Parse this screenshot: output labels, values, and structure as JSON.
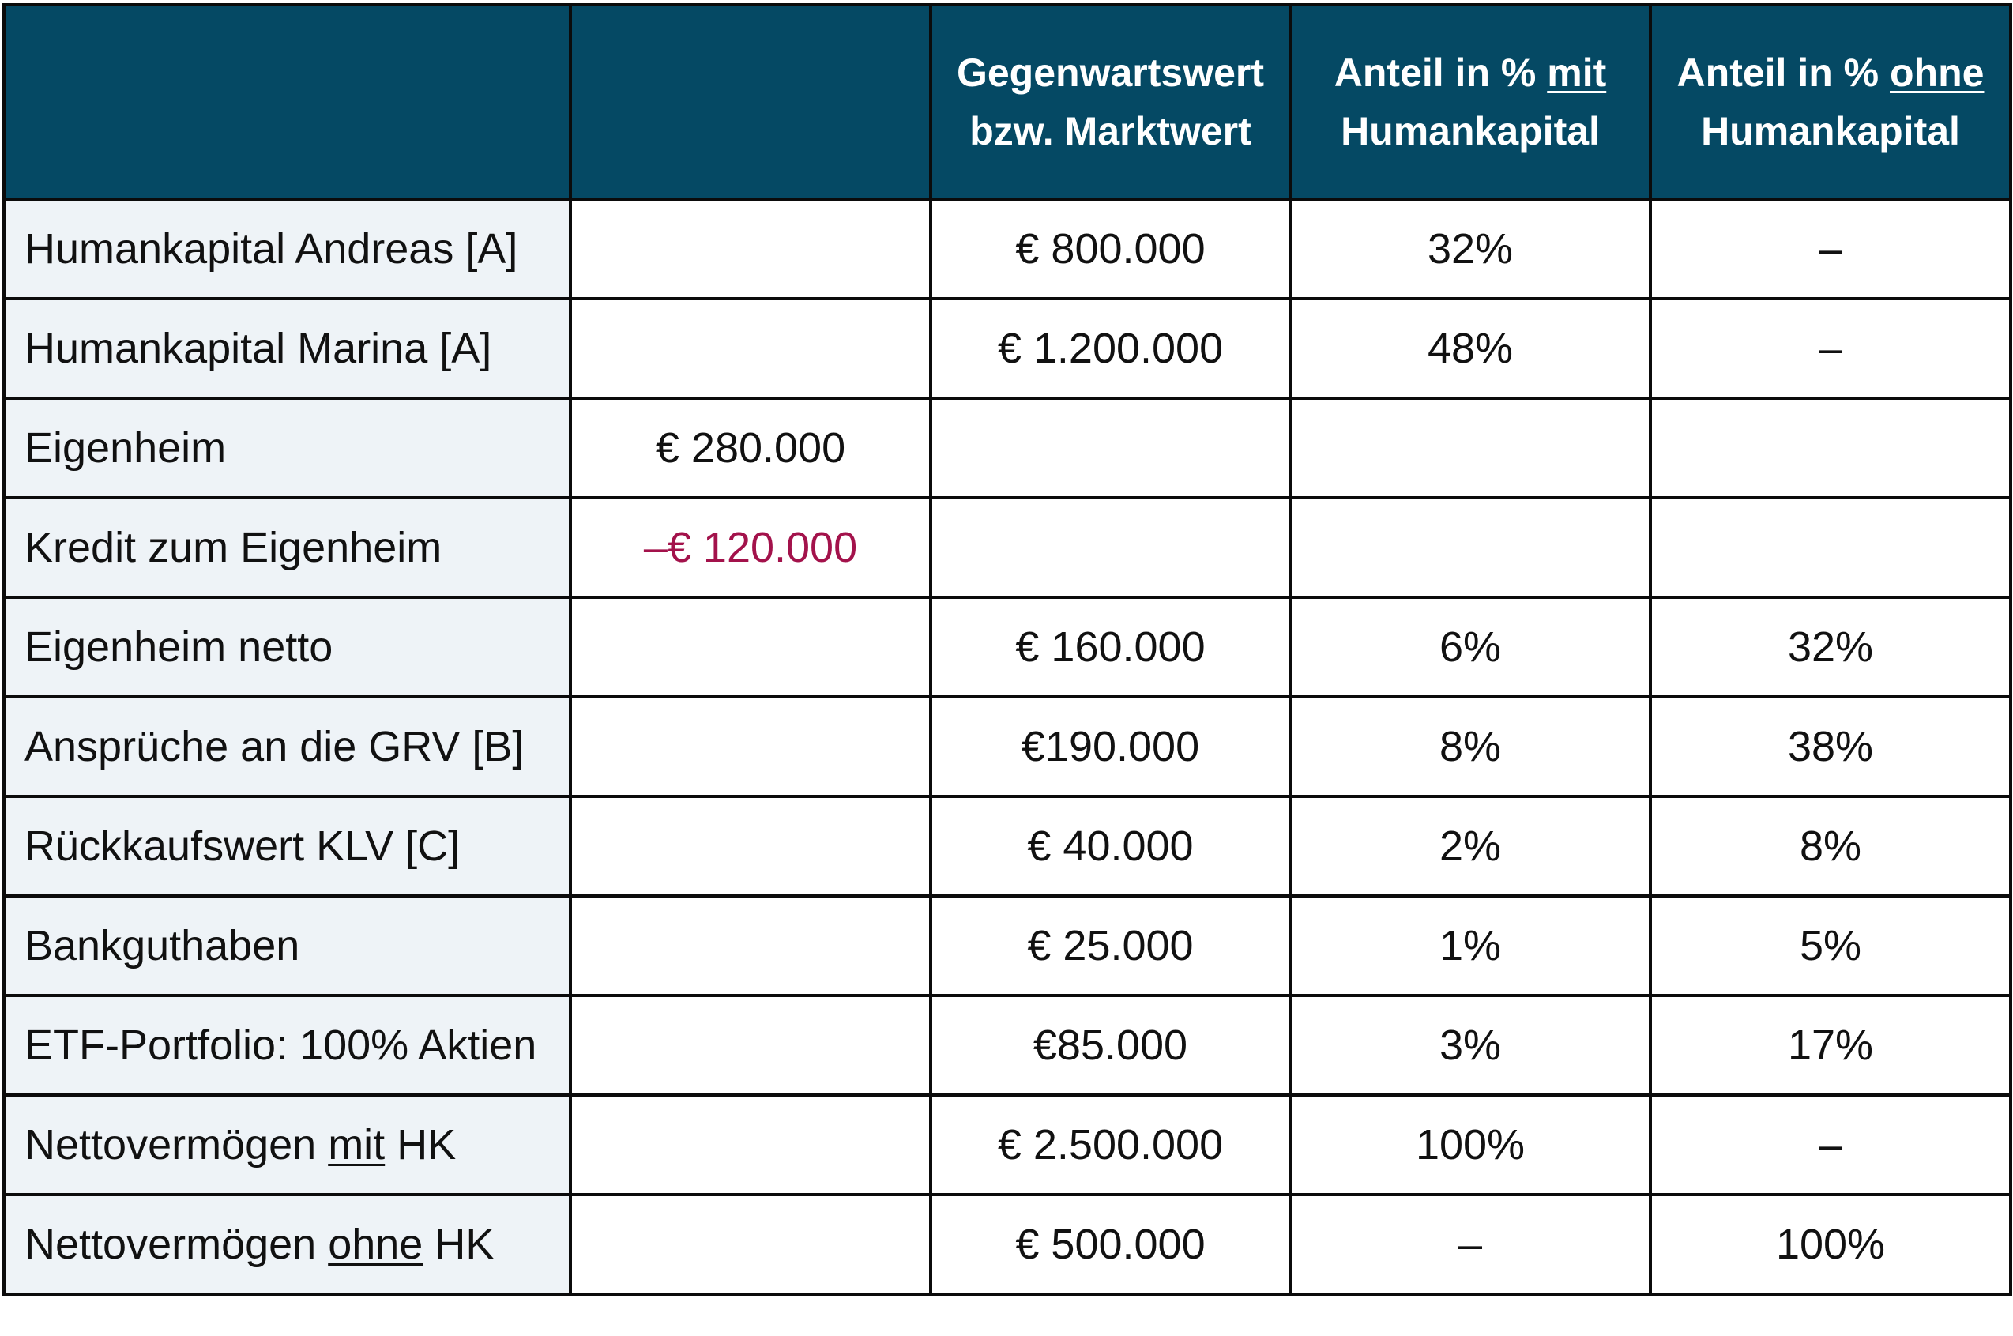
{
  "header": {
    "col1": "",
    "col2": "",
    "col3_line1": "Gegenwartswert",
    "col3_line2": "bzw. Marktwert",
    "col4_line1_prefix": "Anteil in % ",
    "col4_line1_underlined": "mit",
    "col4_line2": "Humankapital",
    "col5_line1_prefix": "Anteil in % ",
    "col5_line1_underlined": "ohne",
    "col5_line2": "Humankapital"
  },
  "rows": [
    {
      "label": "Humankapital Andreas [A]",
      "sub": "",
      "value": "€ 800.000",
      "with_hk": "32%",
      "without_hk": "–"
    },
    {
      "label": "Humankapital Marina [A]",
      "sub": "",
      "value": "€ 1.200.000",
      "with_hk": "48%",
      "without_hk": "–"
    },
    {
      "label": "Eigenheim",
      "sub": "€ 280.000",
      "value": "",
      "with_hk": "",
      "without_hk": ""
    },
    {
      "label": "Kredit zum Eigenheim",
      "sub": "–€ 120.000",
      "value": "",
      "with_hk": "",
      "without_hk": ""
    },
    {
      "label": "Eigenheim netto",
      "sub": "",
      "value": "€ 160.000",
      "with_hk": "6%",
      "without_hk": "32%"
    },
    {
      "label": "Ansprüche an die GRV [B]",
      "sub": "",
      "value": "€190.000",
      "with_hk": "8%",
      "without_hk": "38%"
    },
    {
      "label": "Rückkaufswert KLV [C]",
      "sub": "",
      "value": "€ 40.000",
      "with_hk": "2%",
      "without_hk": "8%"
    },
    {
      "label": "Bankguthaben",
      "sub": "",
      "value": "€ 25.000",
      "with_hk": "1%",
      "without_hk": "5%"
    },
    {
      "label": "ETF-Portfolio: 100% Aktien",
      "sub": "",
      "value": "€85.000",
      "with_hk": "3%",
      "without_hk": "17%"
    },
    {
      "label_prefix": "Nettovermögen ",
      "label_underlined": "mit",
      "label_suffix": " HK",
      "sub": "",
      "value": "€ 2.500.000",
      "with_hk": "100%",
      "without_hk": "–"
    },
    {
      "label_prefix": "Nettovermögen ",
      "label_underlined": "ohne",
      "label_suffix": " HK",
      "sub": "",
      "value": "€ 500.000",
      "with_hk": "–",
      "without_hk": "100%"
    }
  ],
  "colors": {
    "header_bg": "#054964",
    "header_text": "#ffffff",
    "label_bg": "#eef3f7",
    "negative_text": "#a3124b",
    "border": "#0b0b0b"
  }
}
